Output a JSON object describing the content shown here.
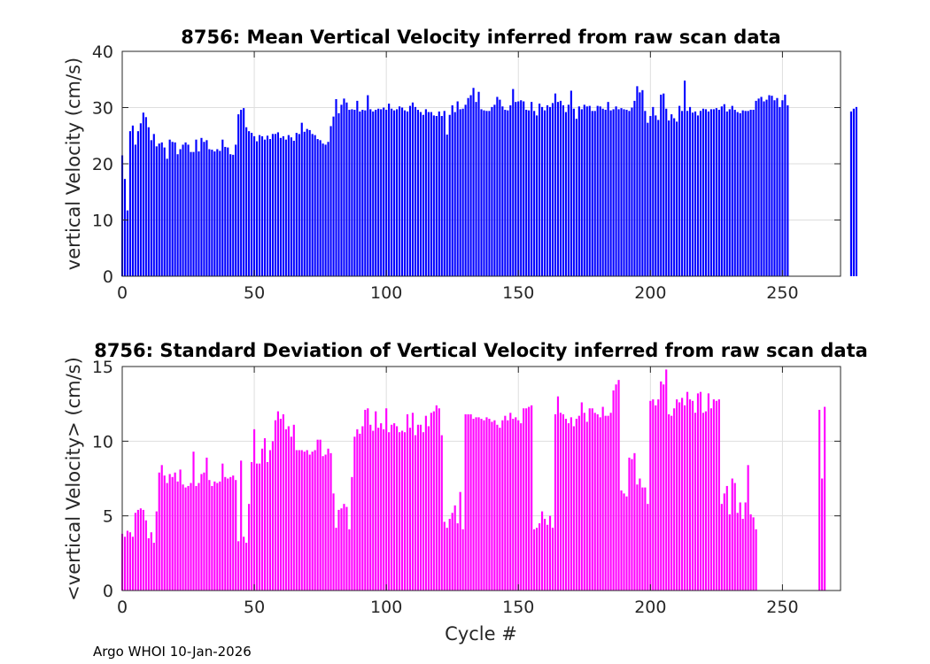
{
  "chart_data": [
    {
      "type": "bar",
      "title": "8756: Mean Vertical Velocity inferred from raw scan data",
      "xlabel": "",
      "ylabel": "vertical Velocity (cm/s)",
      "xlim": [
        0,
        272
      ],
      "ylim": [
        0,
        40
      ],
      "xticks": [
        0,
        50,
        100,
        150,
        200,
        250
      ],
      "yticks": [
        0,
        10,
        20,
        30,
        40
      ],
      "grid": true,
      "color": "#0000ff",
      "x_start": 0,
      "values": [
        21.5,
        17.3,
        11.7,
        25.8,
        26.8,
        23.4,
        25.8,
        27.2,
        29.1,
        28.3,
        26.5,
        24.2,
        25.3,
        23.1,
        23.6,
        23.8,
        22.9,
        20.9,
        24.3,
        23.9,
        23.8,
        21.7,
        22.6,
        23.4,
        23.8,
        23.4,
        22.1,
        22.1,
        24.3,
        22.2,
        24.6,
        23.9,
        24.2,
        22.6,
        22.5,
        22.2,
        22.6,
        22.3,
        24.3,
        23.0,
        22.9,
        21.7,
        21.6,
        23.4,
        28.8,
        29.6,
        29.9,
        26.5,
        25.8,
        25.5,
        24.9,
        24.0,
        25.1,
        24.9,
        24.3,
        25.0,
        24.4,
        25.3,
        25.3,
        25.6,
        24.6,
        24.9,
        24.3,
        25.1,
        24.7,
        24.1,
        25.5,
        25.3,
        27.3,
        25.7,
        26.2,
        26.0,
        25.3,
        25.1,
        24.4,
        24.2,
        23.6,
        23.4,
        23.9,
        26.7,
        28.4,
        31.5,
        29.0,
        30.5,
        31.6,
        30.9,
        29.6,
        29.7,
        29.6,
        31.2,
        29.3,
        29.6,
        29.5,
        32.2,
        29.7,
        29.3,
        29.6,
        29.8,
        29.7,
        30.0,
        29.6,
        30.7,
        29.8,
        29.5,
        29.7,
        30.2,
        30.0,
        29.5,
        29.3,
        30.3,
        30.9,
        30.1,
        29.6,
        29.2,
        28.7,
        29.7,
        29.2,
        29.2,
        28.6,
        28.5,
        29.3,
        28.5,
        29.4,
        25.2,
        28.7,
        30.4,
        29.2,
        31.1,
        29.7,
        29.8,
        30.5,
        31.7,
        32.2,
        33.5,
        31.0,
        32.8,
        29.7,
        29.5,
        29.4,
        29.4,
        30.1,
        30.5,
        31.9,
        31.4,
        30.2,
        29.6,
        29.5,
        30.4,
        33.3,
        31.0,
        31.1,
        31.3,
        31.1,
        29.6,
        29.5,
        31.0,
        29.4,
        28.6,
        30.7,
        30.1,
        29.5,
        30.4,
        30.1,
        30.8,
        32.5,
        31.0,
        31.2,
        30.4,
        29.2,
        30.5,
        33.0,
        29.8,
        28.0,
        30.2,
        29.7,
        30.5,
        30.2,
        30.3,
        29.4,
        29.4,
        30.3,
        30.2,
        29.8,
        29.6,
        31.0,
        29.5,
        29.7,
        30.2,
        29.7,
        29.9,
        29.7,
        29.6,
        29.4,
        30.0,
        31.2,
        33.8,
        32.7,
        33.1,
        29.4,
        27.3,
        28.5,
        30.1,
        28.6,
        27.8,
        32.3,
        32.5,
        29.8,
        27.7,
        28.8,
        28.1,
        27.5,
        30.3,
        29.4,
        34.8,
        29.4,
        30.1,
        29.1,
        29.3,
        28.6,
        29.4,
        29.8,
        29.7,
        29.3,
        29.7,
        29.7,
        29.9,
        29.6,
        30.2,
        30.6,
        29.3,
        29.7,
        30.3,
        29.6,
        29.2,
        29.0,
        29.5,
        29.4,
        29.4,
        29.6,
        29.6,
        31.2,
        31.6,
        31.9,
        31.1,
        31.4,
        32.2,
        32.1,
        31.3,
        31.7,
        30.1,
        31.3,
        32.3,
        30.4,
        null,
        null,
        null,
        null,
        null,
        null,
        null,
        null,
        null,
        null,
        null,
        null,
        null,
        null,
        null,
        null,
        null,
        null,
        null,
        null,
        null,
        null,
        null,
        29.3,
        29.8,
        30.1
      ]
    },
    {
      "type": "bar",
      "title": "8756: Standard Deviation of Vertical Velocity inferred from raw scan data",
      "xlabel": "Cycle #",
      "ylabel": "<vertical Velocity> (cm/s)",
      "xlim": [
        0,
        272
      ],
      "ylim": [
        0,
        15
      ],
      "xticks": [
        0,
        50,
        100,
        150,
        200,
        250
      ],
      "yticks": [
        0,
        5,
        10,
        15
      ],
      "grid": true,
      "color": "#ff00ff",
      "x_start": 0,
      "values": [
        3.8,
        3.6,
        4.0,
        3.9,
        3.6,
        5.2,
        5.4,
        5.5,
        5.4,
        4.7,
        3.5,
        3.9,
        3.2,
        5.3,
        7.9,
        8.4,
        7.7,
        7.2,
        7.8,
        7.6,
        7.9,
        7.3,
        8.1,
        7.1,
        6.9,
        7.0,
        7.2,
        9.3,
        7.0,
        7.2,
        7.8,
        7.9,
        8.9,
        7.4,
        7.0,
        7.3,
        7.2,
        7.3,
        8.5,
        7.6,
        7.5,
        7.6,
        7.7,
        7.4,
        3.3,
        8.7,
        3.6,
        3.2,
        5.8,
        8.6,
        10.8,
        8.5,
        8.5,
        9.5,
        10.2,
        8.6,
        9.4,
        10.0,
        11.4,
        12.0,
        11.5,
        11.8,
        10.8,
        11.0,
        10.3,
        11.1,
        9.4,
        9.4,
        9.4,
        9.3,
        9.4,
        9.1,
        9.3,
        9.4,
        10.1,
        10.1,
        9.0,
        9.1,
        9.5,
        9.2,
        6.5,
        4.2,
        5.4,
        5.5,
        5.8,
        5.6,
        4.1,
        7.6,
        10.3,
        10.8,
        10.5,
        11.0,
        12.1,
        12.2,
        11.1,
        10.7,
        12.0,
        10.9,
        11.2,
        10.8,
        12.2,
        10.6,
        11.1,
        11.2,
        11.0,
        10.6,
        10.7,
        10.6,
        11.8,
        10.9,
        11.9,
        10.4,
        11.1,
        11.1,
        10.6,
        11.7,
        11.0,
        11.9,
        12.0,
        12.4,
        12.2,
        10.4,
        4.6,
        4.2,
        4.8,
        5.2,
        5.7,
        4.5,
        6.6,
        4.1,
        11.8,
        11.8,
        11.8,
        11.5,
        11.6,
        11.6,
        11.5,
        11.4,
        11.6,
        11.5,
        11.3,
        11.4,
        11.1,
        10.9,
        11.4,
        11.7,
        11.4,
        11.9,
        11.5,
        11.6,
        11.4,
        11.2,
        12.2,
        12.2,
        12.3,
        12.4,
        4.1,
        4.2,
        4.5,
        5.3,
        4.8,
        4.4,
        5.0,
        4.2,
        11.8,
        13.0,
        11.9,
        11.8,
        11.5,
        11.2,
        11.6,
        11.0,
        11.5,
        11.7,
        12.6,
        11.9,
        11.3,
        12.2,
        12.2,
        11.9,
        11.8,
        11.6,
        12.3,
        11.7,
        11.7,
        11.9,
        13.4,
        13.8,
        14.1,
        6.7,
        6.5,
        6.3,
        8.9,
        8.8,
        9.2,
        7.1,
        7.5,
        6.9,
        6.9,
        5.8,
        12.7,
        12.8,
        12.4,
        12.8,
        14.0,
        13.8,
        14.8,
        11.8,
        11.7,
        12.2,
        12.8,
        12.6,
        12.9,
        12.4,
        13.3,
        12.8,
        12.7,
        11.9,
        13.2,
        13.3,
        11.9,
        12.0,
        13.2,
        12.2,
        12.8,
        12.7,
        12.8,
        5.8,
        6.5,
        7.0,
        5.1,
        7.5,
        7.2,
        5.2,
        5.9,
        4.8,
        5.9,
        8.4,
        5.1,
        4.9,
        4.1,
        null,
        null,
        null,
        null,
        null,
        null,
        null,
        null,
        null,
        null,
        null,
        null,
        null,
        null,
        null,
        null,
        null,
        null,
        null,
        null,
        null,
        null,
        null,
        12.1,
        7.5,
        12.3
      ]
    }
  ],
  "footer": "Argo WHOI 10-Jan-2026"
}
